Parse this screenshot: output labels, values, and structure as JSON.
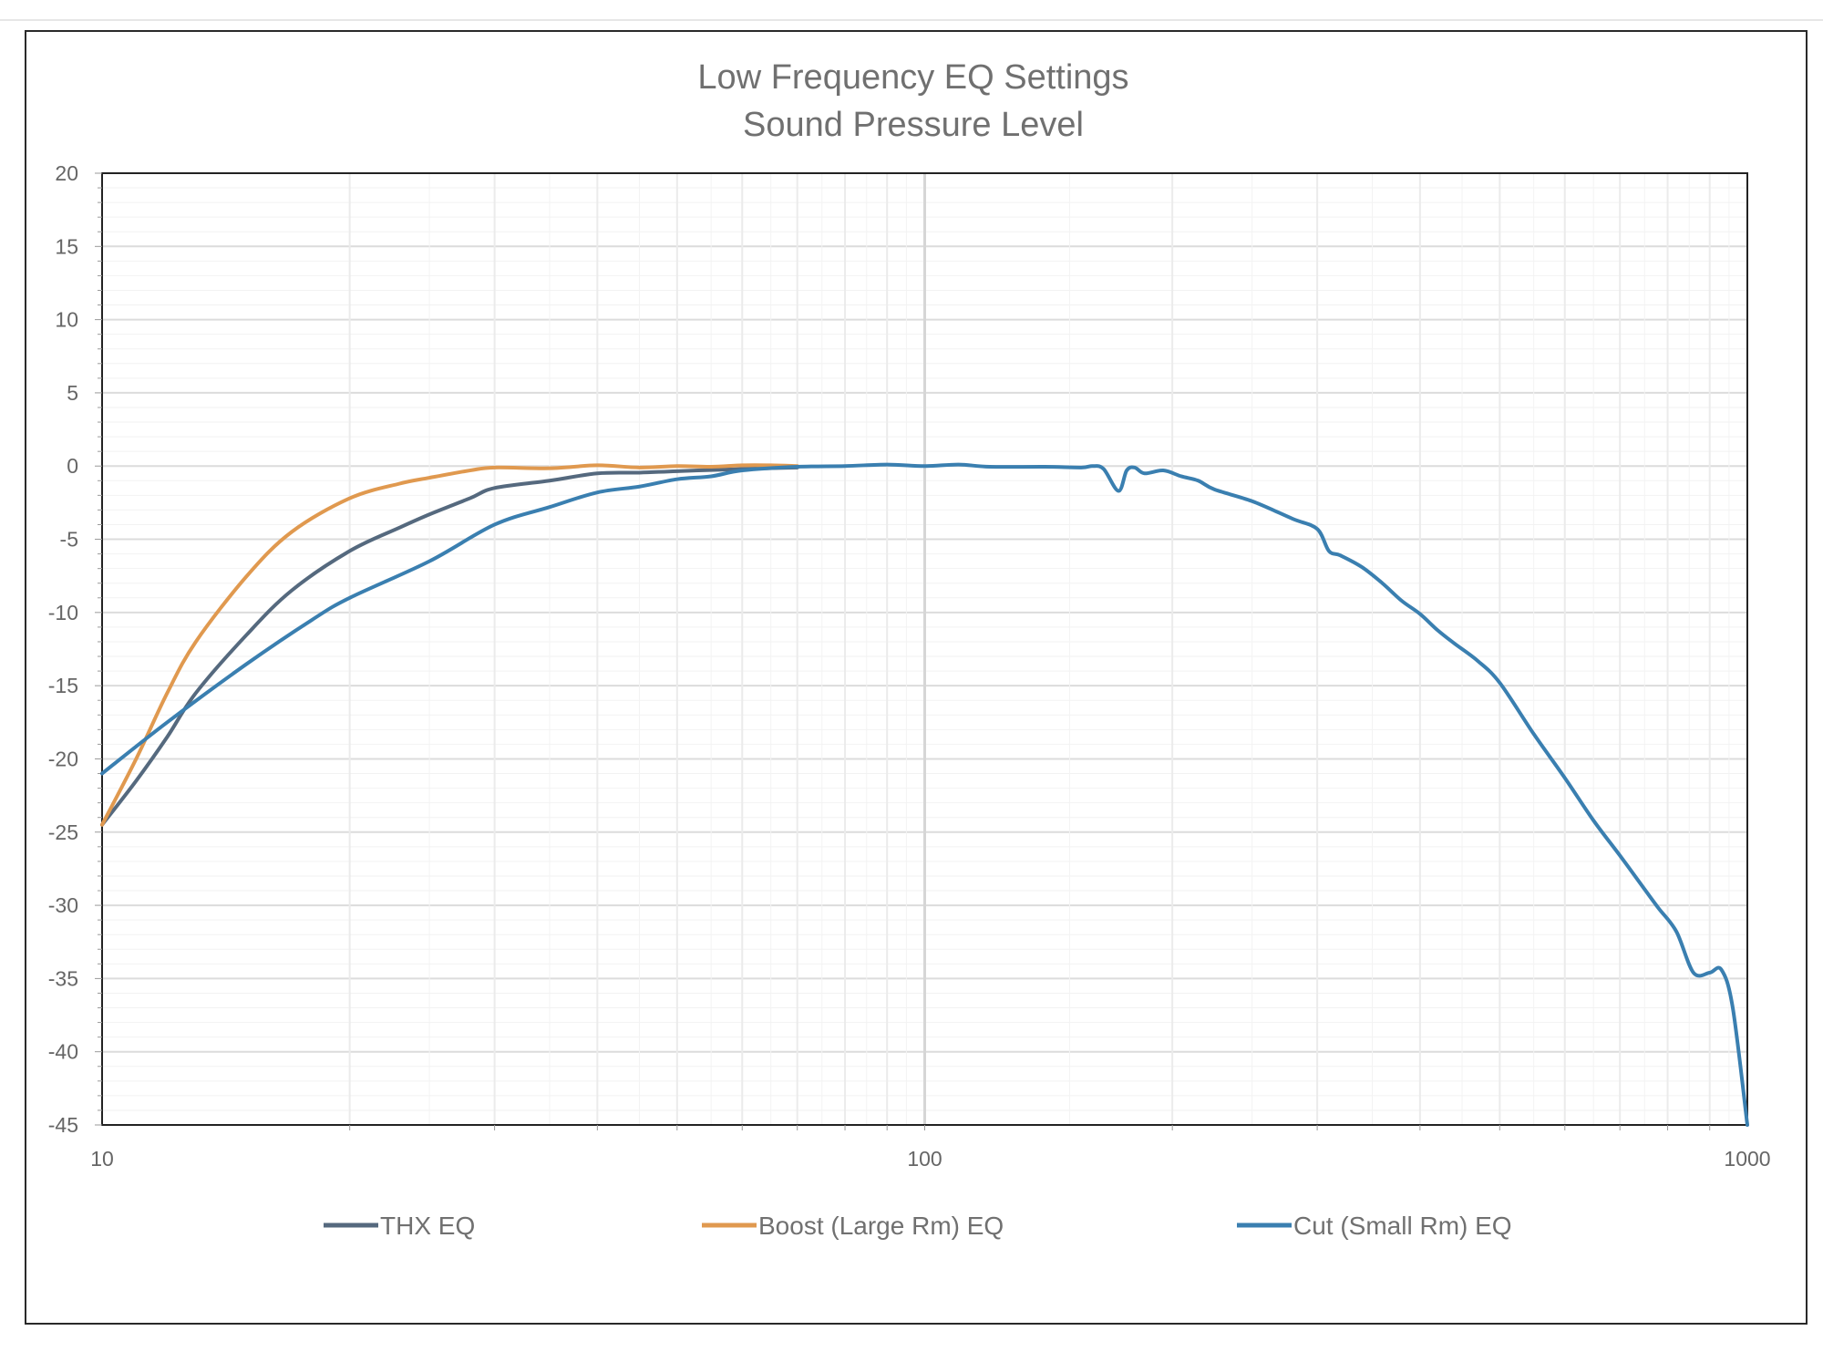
{
  "chart_data": {
    "type": "line",
    "title": "Low Frequency EQ Settings",
    "subtitle": "Sound Pressure Level",
    "xlabel": "",
    "ylabel": "",
    "x_scale": "log",
    "xlim": [
      10,
      1000
    ],
    "ylim": [
      -45,
      20
    ],
    "x_ticks": [
      10,
      100,
      1000
    ],
    "x_tick_labels": [
      "10",
      "100",
      "1000"
    ],
    "y_ticks": [
      20,
      15,
      10,
      5,
      0,
      -5,
      -10,
      -15,
      -20,
      -25,
      -30,
      -35,
      -40,
      -45
    ],
    "y_tick_labels": [
      "20",
      "15",
      "10",
      "5",
      "0",
      "-5",
      "-10",
      "-15",
      "-20",
      "-25",
      "-30",
      "-35",
      "-40",
      "-45"
    ],
    "grid": true,
    "legend_position": "bottom",
    "series": [
      {
        "name": "THX EQ",
        "color": "#55697e",
        "points": [
          [
            10,
            -24.5
          ],
          [
            11,
            -21.5
          ],
          [
            12,
            -18.5
          ],
          [
            13,
            -15.5
          ],
          [
            15,
            -11.5
          ],
          [
            17,
            -8.5
          ],
          [
            20,
            -5.8
          ],
          [
            23,
            -4.2
          ],
          [
            25,
            -3.3
          ],
          [
            28,
            -2.2
          ],
          [
            30,
            -1.5
          ],
          [
            35,
            -1.0
          ],
          [
            40,
            -0.5
          ],
          [
            45,
            -0.45
          ],
          [
            50,
            -0.35
          ],
          [
            60,
            -0.2
          ],
          [
            70,
            -0.1
          ]
        ]
      },
      {
        "name": "Boost (Large Rm) EQ",
        "color": "#e0994f",
        "points": [
          [
            10,
            -24.5
          ],
          [
            11,
            -20
          ],
          [
            12,
            -15.5
          ],
          [
            13,
            -12
          ],
          [
            15,
            -7.5
          ],
          [
            17,
            -4.5
          ],
          [
            20,
            -2.2
          ],
          [
            23,
            -1.2
          ],
          [
            25,
            -0.8
          ],
          [
            28,
            -0.3
          ],
          [
            30,
            -0.1
          ],
          [
            35,
            -0.15
          ],
          [
            40,
            0.05
          ],
          [
            45,
            -0.1
          ],
          [
            50,
            0.0
          ],
          [
            55,
            -0.05
          ],
          [
            60,
            0.05
          ],
          [
            65,
            0.05
          ],
          [
            70,
            0.0
          ]
        ]
      },
      {
        "name": "Cut (Small Rm) EQ",
        "color": "#3a7fb0",
        "points": [
          [
            10,
            -21
          ],
          [
            12,
            -17.5
          ],
          [
            15,
            -13.5
          ],
          [
            18,
            -10.5
          ],
          [
            20,
            -9.0
          ],
          [
            25,
            -6.5
          ],
          [
            30,
            -4.0
          ],
          [
            35,
            -2.8
          ],
          [
            40,
            -1.8
          ],
          [
            45,
            -1.4
          ],
          [
            50,
            -0.9
          ],
          [
            55,
            -0.7
          ],
          [
            60,
            -0.3
          ],
          [
            70,
            -0.05
          ],
          [
            80,
            0.0
          ],
          [
            90,
            0.1
          ],
          [
            100,
            0.0
          ],
          [
            110,
            0.1
          ],
          [
            120,
            -0.05
          ],
          [
            140,
            -0.05
          ],
          [
            155,
            -0.1
          ],
          [
            160,
            0.0
          ],
          [
            165,
            -0.2
          ],
          [
            172,
            -1.7
          ],
          [
            176,
            -0.3
          ],
          [
            180,
            -0.1
          ],
          [
            185,
            -0.5
          ],
          [
            195,
            -0.3
          ],
          [
            205,
            -0.7
          ],
          [
            215,
            -1.0
          ],
          [
            225,
            -1.6
          ],
          [
            250,
            -2.4
          ],
          [
            280,
            -3.6
          ],
          [
            300,
            -4.3
          ],
          [
            310,
            -5.8
          ],
          [
            320,
            -6.1
          ],
          [
            340,
            -6.9
          ],
          [
            360,
            -8.0
          ],
          [
            380,
            -9.2
          ],
          [
            400,
            -10.1
          ],
          [
            420,
            -11.2
          ],
          [
            440,
            -12.1
          ],
          [
            470,
            -13.3
          ],
          [
            500,
            -14.8
          ],
          [
            550,
            -18.3
          ],
          [
            600,
            -21.3
          ],
          [
            650,
            -24.2
          ],
          [
            700,
            -26.6
          ],
          [
            750,
            -28.9
          ],
          [
            780,
            -30.2
          ],
          [
            820,
            -31.8
          ],
          [
            860,
            -34.6
          ],
          [
            900,
            -34.6
          ],
          [
            930,
            -34.4
          ],
          [
            960,
            -37
          ],
          [
            1000,
            -45
          ]
        ]
      }
    ]
  }
}
